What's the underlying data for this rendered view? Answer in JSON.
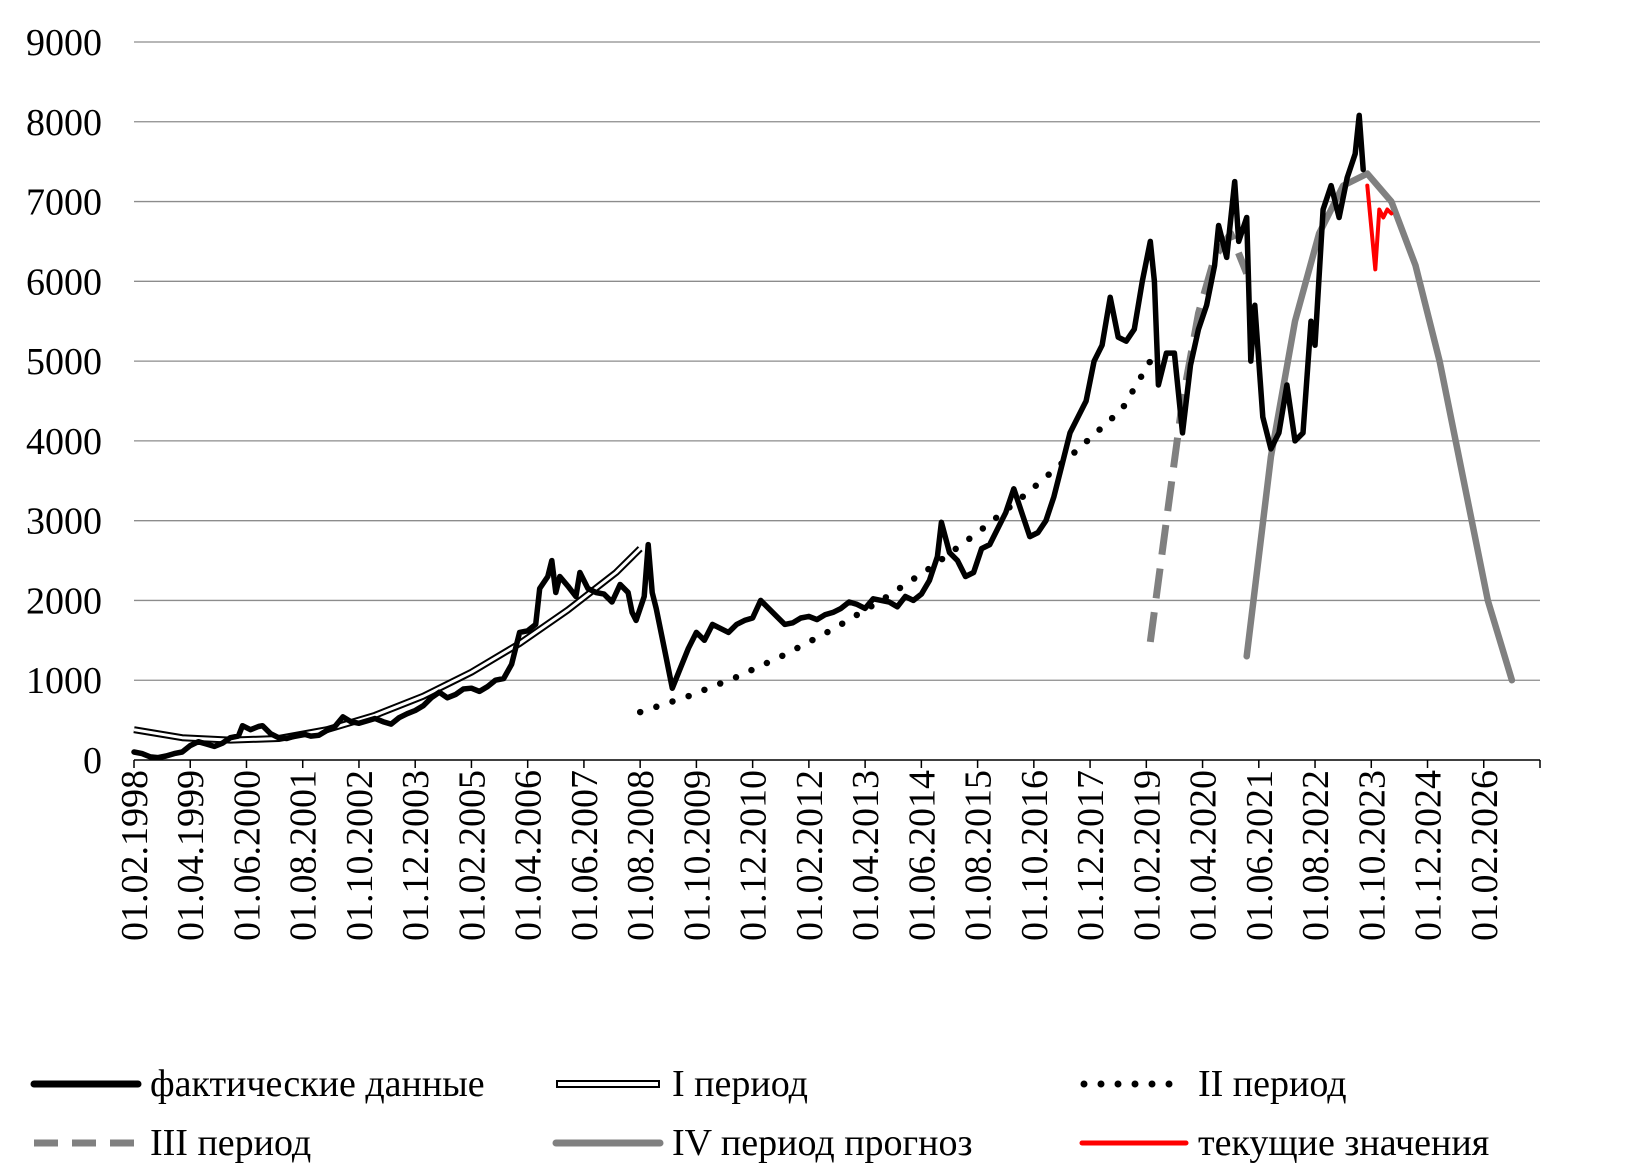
{
  "chart_data": {
    "type": "line",
    "ylim": [
      0,
      9000
    ],
    "y_ticks": [
      "0",
      "1000",
      "2000",
      "3000",
      "4000",
      "5000",
      "6000",
      "7000",
      "8000",
      "9000"
    ],
    "x_ticks": [
      "01.02.1998",
      "01.04.1999",
      "01.06.2000",
      "01.08.2001",
      "01.10.2002",
      "01.12.2003",
      "01.02.2005",
      "01.04.2006",
      "01.06.2007",
      "01.08.2008",
      "01.10.2009",
      "01.12.2010",
      "01.02.2012",
      "01.04.2013",
      "01.06.2014",
      "01.08.2015",
      "01.10.2016",
      "01.12.2017",
      "01.02.2019",
      "01.04.2020",
      "01.06.2021",
      "01.08.2022",
      "01.10.2023",
      "01.12.2024",
      "01.02.2026"
    ],
    "xlim": [
      "01.02.1998",
      "01.04.2027"
    ],
    "grid": "horizontal",
    "legend_position": "bottom",
    "series": [
      {
        "name": "фактические данные",
        "style": "solid-thick",
        "color": "#000000",
        "points": [
          [
            "1998-02",
            100
          ],
          [
            "1998-04",
            80
          ],
          [
            "1998-06",
            40
          ],
          [
            "1998-08",
            30
          ],
          [
            "1998-10",
            50
          ],
          [
            "1998-12",
            80
          ],
          [
            "1999-02",
            100
          ],
          [
            "1999-04",
            180
          ],
          [
            "1999-06",
            230
          ],
          [
            "1999-08",
            200
          ],
          [
            "1999-10",
            170
          ],
          [
            "1999-12",
            210
          ],
          [
            "2000-02",
            280
          ],
          [
            "2000-04",
            300
          ],
          [
            "2000-05",
            430
          ],
          [
            "2000-07",
            380
          ],
          [
            "2000-09",
            420
          ],
          [
            "2000-10",
            430
          ],
          [
            "2000-12",
            330
          ],
          [
            "2001-02",
            280
          ],
          [
            "2001-04",
            270
          ],
          [
            "2001-06",
            300
          ],
          [
            "2001-08",
            330
          ],
          [
            "2001-10",
            300
          ],
          [
            "2001-12",
            310
          ],
          [
            "2002-02",
            370
          ],
          [
            "2002-04",
            420
          ],
          [
            "2002-06",
            540
          ],
          [
            "2002-08",
            480
          ],
          [
            "2002-10",
            460
          ],
          [
            "2002-12",
            490
          ],
          [
            "2003-02",
            520
          ],
          [
            "2003-04",
            480
          ],
          [
            "2003-06",
            450
          ],
          [
            "2003-08",
            530
          ],
          [
            "2003-10",
            580
          ],
          [
            "2003-12",
            620
          ],
          [
            "2004-02",
            680
          ],
          [
            "2004-04",
            780
          ],
          [
            "2004-06",
            850
          ],
          [
            "2004-08",
            780
          ],
          [
            "2004-10",
            820
          ],
          [
            "2004-12",
            890
          ],
          [
            "2005-02",
            900
          ],
          [
            "2005-04",
            860
          ],
          [
            "2005-06",
            920
          ],
          [
            "2005-08",
            1000
          ],
          [
            "2005-10",
            1020
          ],
          [
            "2005-12",
            1200
          ],
          [
            "2006-02",
            1600
          ],
          [
            "2006-04",
            1620
          ],
          [
            "2006-06",
            1700
          ],
          [
            "2006-07",
            2150
          ],
          [
            "2006-09",
            2300
          ],
          [
            "2006-10",
            2500
          ],
          [
            "2006-11",
            2100
          ],
          [
            "2006-12",
            2300
          ],
          [
            "2007-02",
            2180
          ],
          [
            "2007-04",
            2050
          ],
          [
            "2007-05",
            2350
          ],
          [
            "2007-07",
            2150
          ],
          [
            "2007-09",
            2100
          ],
          [
            "2007-11",
            2080
          ],
          [
            "2008-01",
            1980
          ],
          [
            "2008-03",
            2200
          ],
          [
            "2008-05",
            2100
          ],
          [
            "2008-06",
            1850
          ],
          [
            "2008-07",
            1750
          ],
          [
            "2008-09",
            2050
          ],
          [
            "2008-10",
            2700
          ],
          [
            "2008-11",
            2100
          ],
          [
            "2008-12",
            1900
          ],
          [
            "2009-02",
            1400
          ],
          [
            "2009-04",
            900
          ],
          [
            "2009-06",
            1150
          ],
          [
            "2009-08",
            1400
          ],
          [
            "2009-10",
            1600
          ],
          [
            "2009-12",
            1500
          ],
          [
            "2010-02",
            1700
          ],
          [
            "2010-04",
            1650
          ],
          [
            "2010-06",
            1600
          ],
          [
            "2010-08",
            1700
          ],
          [
            "2010-10",
            1750
          ],
          [
            "2010-12",
            1780
          ],
          [
            "2011-02",
            2000
          ],
          [
            "2011-04",
            1900
          ],
          [
            "2011-06",
            1800
          ],
          [
            "2011-08",
            1700
          ],
          [
            "2011-10",
            1720
          ],
          [
            "2011-12",
            1780
          ],
          [
            "2012-02",
            1800
          ],
          [
            "2012-04",
            1760
          ],
          [
            "2012-06",
            1820
          ],
          [
            "2012-08",
            1850
          ],
          [
            "2012-10",
            1900
          ],
          [
            "2012-12",
            1980
          ],
          [
            "2013-02",
            1950
          ],
          [
            "2013-04",
            1900
          ],
          [
            "2013-06",
            2020
          ],
          [
            "2013-08",
            2000
          ],
          [
            "2013-10",
            1980
          ],
          [
            "2013-12",
            1920
          ],
          [
            "2014-02",
            2050
          ],
          [
            "2014-04",
            2000
          ],
          [
            "2014-06",
            2080
          ],
          [
            "2014-08",
            2250
          ],
          [
            "2014-10",
            2550
          ],
          [
            "2014-11",
            2980
          ],
          [
            "2015-01",
            2600
          ],
          [
            "2015-03",
            2500
          ],
          [
            "2015-05",
            2300
          ],
          [
            "2015-07",
            2350
          ],
          [
            "2015-09",
            2650
          ],
          [
            "2015-11",
            2700
          ],
          [
            "2016-01",
            2900
          ],
          [
            "2016-03",
            3100
          ],
          [
            "2016-05",
            3400
          ],
          [
            "2016-07",
            3100
          ],
          [
            "2016-09",
            2800
          ],
          [
            "2016-11",
            2850
          ],
          [
            "2017-01",
            3000
          ],
          [
            "2017-03",
            3300
          ],
          [
            "2017-05",
            3700
          ],
          [
            "2017-07",
            4100
          ],
          [
            "2017-09",
            4300
          ],
          [
            "2017-11",
            4500
          ],
          [
            "2018-01",
            5000
          ],
          [
            "2018-03",
            5200
          ],
          [
            "2018-05",
            5800
          ],
          [
            "2018-07",
            5300
          ],
          [
            "2018-09",
            5250
          ],
          [
            "2018-11",
            5400
          ],
          [
            "2019-01",
            6000
          ],
          [
            "2019-03",
            6500
          ],
          [
            "2019-04",
            6000
          ],
          [
            "2019-05",
            4700
          ],
          [
            "2019-07",
            5100
          ],
          [
            "2019-09",
            5100
          ],
          [
            "2019-11",
            4100
          ],
          [
            "2020-01",
            4950
          ],
          [
            "2020-03",
            5400
          ],
          [
            "2020-05",
            5700
          ],
          [
            "2020-07",
            6200
          ],
          [
            "2020-08",
            6700
          ],
          [
            "2020-10",
            6300
          ],
          [
            "2020-12",
            7250
          ],
          [
            "2021-01",
            6500
          ],
          [
            "2021-03",
            6800
          ],
          [
            "2021-04",
            5000
          ],
          [
            "2021-05",
            5700
          ],
          [
            "2021-07",
            4300
          ],
          [
            "2021-09",
            3900
          ],
          [
            "2021-11",
            4100
          ],
          [
            "2022-01",
            4700
          ],
          [
            "2022-03",
            4000
          ],
          [
            "2022-05",
            4100
          ],
          [
            "2022-07",
            5500
          ],
          [
            "2022-08",
            5200
          ],
          [
            "2022-10",
            6900
          ],
          [
            "2022-12",
            7200
          ],
          [
            "2023-02",
            6800
          ],
          [
            "2023-04",
            7300
          ],
          [
            "2023-06",
            7600
          ],
          [
            "2023-07",
            8080
          ],
          [
            "2023-08",
            7400
          ]
        ]
      },
      {
        "name": "I период",
        "style": "double",
        "color": "#000000",
        "points": [
          [
            "1998-02",
            380
          ],
          [
            "1999-02",
            280
          ],
          [
            "2000-02",
            250
          ],
          [
            "2001-02",
            270
          ],
          [
            "2002-02",
            380
          ],
          [
            "2003-02",
            560
          ],
          [
            "2004-02",
            800
          ],
          [
            "2005-02",
            1100
          ],
          [
            "2006-02",
            1460
          ],
          [
            "2007-02",
            1880
          ],
          [
            "2008-02",
            2350
          ],
          [
            "2008-08",
            2650
          ]
        ]
      },
      {
        "name": "II период",
        "style": "dotted",
        "color": "#000000",
        "points": [
          [
            "2008-08",
            600
          ],
          [
            "2009-08",
            800
          ],
          [
            "2010-08",
            1040
          ],
          [
            "2011-08",
            1320
          ],
          [
            "2012-08",
            1640
          ],
          [
            "2013-08",
            2000
          ],
          [
            "2014-08",
            2400
          ],
          [
            "2015-08",
            2850
          ],
          [
            "2016-08",
            3330
          ],
          [
            "2017-08",
            3850
          ],
          [
            "2018-08",
            4400
          ],
          [
            "2019-03",
            5000
          ]
        ]
      },
      {
        "name": "III период",
        "style": "dashed",
        "color": "#808080",
        "points": [
          [
            "2019-03",
            1480
          ],
          [
            "2019-07",
            3000
          ],
          [
            "2019-11",
            4500
          ],
          [
            "2020-03",
            5600
          ],
          [
            "2020-07",
            6300
          ],
          [
            "2020-11",
            6600
          ],
          [
            "2021-03",
            6100
          ]
        ]
      },
      {
        "name": "IV период прогноз",
        "style": "solid-gray",
        "color": "#808080",
        "points": [
          [
            "2021-03",
            1300
          ],
          [
            "2021-09",
            3800
          ],
          [
            "2022-03",
            5500
          ],
          [
            "2022-09",
            6600
          ],
          [
            "2023-03",
            7200
          ],
          [
            "2023-09",
            7350
          ],
          [
            "2024-03",
            7000
          ],
          [
            "2024-09",
            6200
          ],
          [
            "2025-03",
            5000
          ],
          [
            "2025-09",
            3500
          ],
          [
            "2026-03",
            2000
          ],
          [
            "2026-09",
            1000
          ]
        ]
      },
      {
        "name": "текущие значения",
        "style": "solid-red",
        "color": "#ff0000",
        "points": [
          [
            "2023-09",
            7200
          ],
          [
            "2023-11",
            6150
          ],
          [
            "2023-12",
            6900
          ],
          [
            "2024-01",
            6800
          ],
          [
            "2024-02",
            6900
          ],
          [
            "2024-03",
            6850
          ]
        ]
      }
    ]
  }
}
